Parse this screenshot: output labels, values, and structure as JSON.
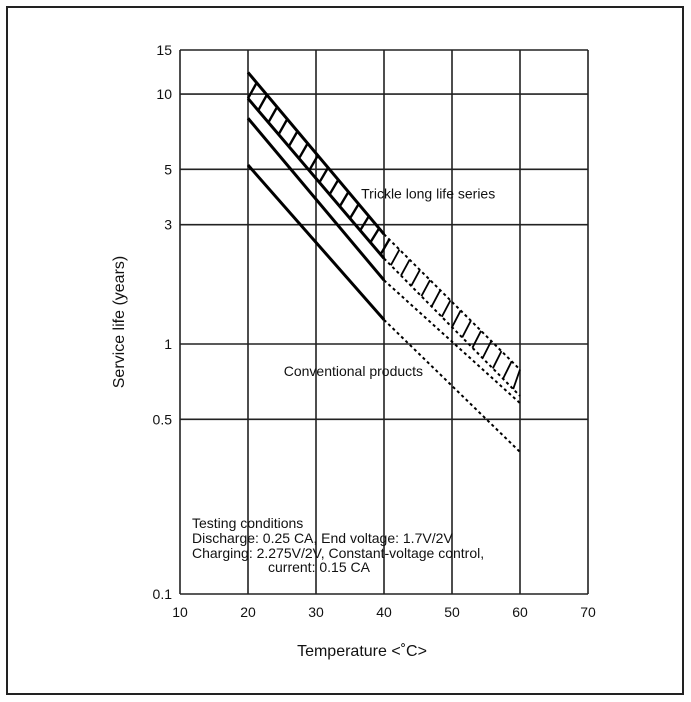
{
  "chart_data": {
    "type": "line",
    "scale": {
      "x": "linear",
      "y": "log"
    },
    "xlabel": "Temperature <˚C>",
    "ylabel": "Service life (years)",
    "xlim": [
      10,
      70
    ],
    "ylim": [
      0.1,
      15
    ],
    "grid": true,
    "x_ticks": [
      "10",
      "20",
      "30",
      "40",
      "50",
      "60",
      "70"
    ],
    "y_ticks": [
      {
        "value": 15,
        "label": "15"
      },
      {
        "value": 10,
        "label": "10"
      },
      {
        "value": 5,
        "label": "5"
      },
      {
        "value": 3,
        "label": "3"
      },
      {
        "value": 1,
        "label": "1"
      },
      {
        "value": 0.5,
        "label": "0.5"
      },
      {
        "value": 0.1,
        "label": "0.1"
      }
    ],
    "series": [
      {
        "group": "Trickle long life series",
        "role": "upper",
        "points": [
          [
            20,
            12.2
          ],
          [
            40,
            2.75
          ],
          [
            60,
            0.79
          ]
        ],
        "dashed_from": 40
      },
      {
        "group": "Trickle long life series",
        "role": "lower",
        "points": [
          [
            20,
            9.6
          ],
          [
            40,
            2.2
          ],
          [
            60,
            0.62
          ]
        ],
        "dashed_from": 40
      },
      {
        "group": "Conventional products",
        "role": "upper",
        "points": [
          [
            20,
            8.0
          ],
          [
            40,
            1.8
          ],
          [
            60,
            0.58
          ]
        ],
        "dashed_from": 40
      },
      {
        "group": "Conventional products",
        "role": "lower",
        "points": [
          [
            20,
            5.2
          ],
          [
            40,
            1.25
          ],
          [
            60,
            0.37
          ]
        ],
        "dashed_from": 40
      }
    ],
    "annotations": [
      {
        "text": "Trickle long life series",
        "x": 46.5,
        "y": 4.0
      },
      {
        "text": "Conventional products",
        "x": 35.5,
        "y": 0.78
      }
    ],
    "notes": [
      "Testing conditions",
      "Discharge: 0.25 CA, End voltage: 1.7V/2V",
      "Charging: 2.275V/2V, Constant-voltage control,",
      "current: 0.15 CA"
    ]
  }
}
